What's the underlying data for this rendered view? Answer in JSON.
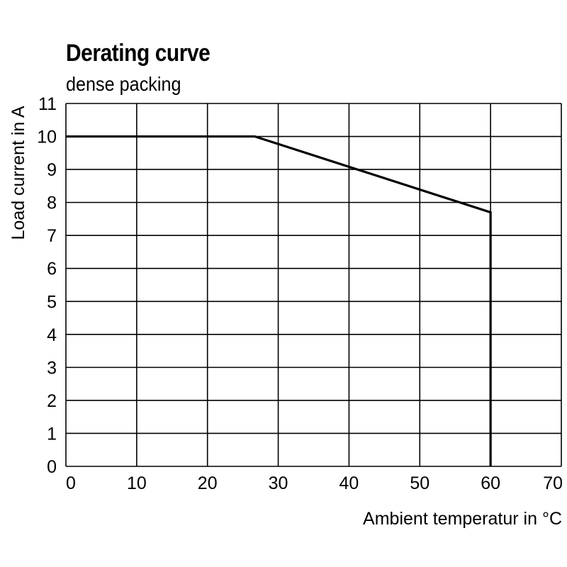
{
  "chart_data": {
    "type": "line",
    "title": "Derating curve",
    "subtitle": "dense packing",
    "xlabel": "Ambient temperatur in °C",
    "ylabel": "Load  current in A",
    "xlim": [
      0,
      70
    ],
    "ylim": [
      0,
      11
    ],
    "xticks": [
      0,
      10,
      20,
      30,
      40,
      50,
      60,
      70
    ],
    "yticks": [
      0,
      1,
      2,
      3,
      4,
      5,
      6,
      7,
      8,
      9,
      10,
      11
    ],
    "grid": true,
    "series": [
      {
        "name": "dense packing",
        "x": [
          0,
          26.7,
          60,
          60
        ],
        "y": [
          10,
          10,
          7.7,
          0
        ]
      }
    ],
    "colors": {
      "line": "#000000",
      "grid": "#000000"
    }
  }
}
